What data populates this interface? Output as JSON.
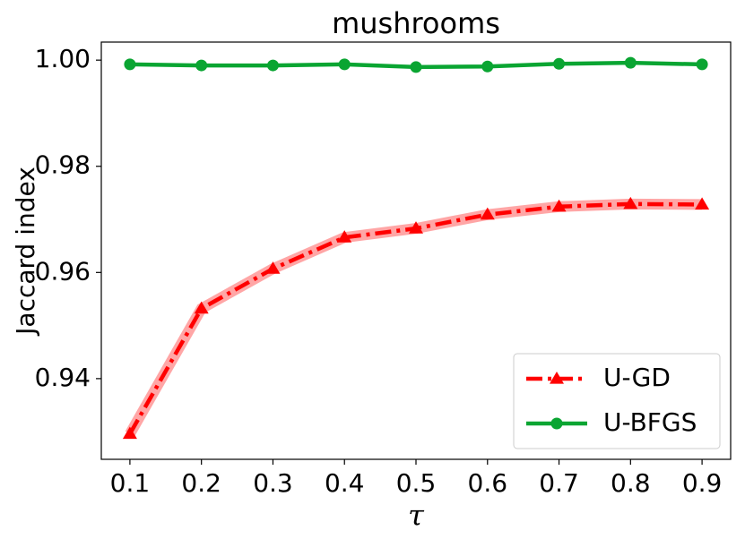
{
  "chart_data": {
    "type": "line",
    "title": "mushrooms",
    "xlabel": "τ",
    "ylabel": "Jaccard index",
    "x": [
      0.1,
      0.2,
      0.3,
      0.4,
      0.5,
      0.6,
      0.7,
      0.8,
      0.9
    ],
    "series": [
      {
        "name": "U-GD",
        "color": "#ff0000",
        "marker": "triangle",
        "linestyle": "dashdot",
        "values": [
          0.9296,
          0.9532,
          0.9607,
          0.9666,
          0.9683,
          0.9709,
          0.9724,
          0.9729,
          0.9728
        ]
      },
      {
        "name": "U-BFGS",
        "color": "#0aa532",
        "marker": "circle",
        "linestyle": "solid",
        "values": [
          0.9992,
          0.999,
          0.999,
          0.9992,
          0.9987,
          0.9988,
          0.9993,
          0.9995,
          0.9992
        ]
      }
    ],
    "xlim": [
      0.06,
      0.94
    ],
    "xticks": [
      0.1,
      0.2,
      0.3,
      0.4,
      0.5,
      0.6,
      0.7,
      0.8,
      0.9
    ],
    "ylim": [
      0.9248,
      1.0034
    ],
    "yticks": [
      0.94,
      0.96,
      0.98,
      {
        "value": 1,
        "label": "1.00"
      }
    ],
    "grid": false,
    "legend": "lower right"
  }
}
